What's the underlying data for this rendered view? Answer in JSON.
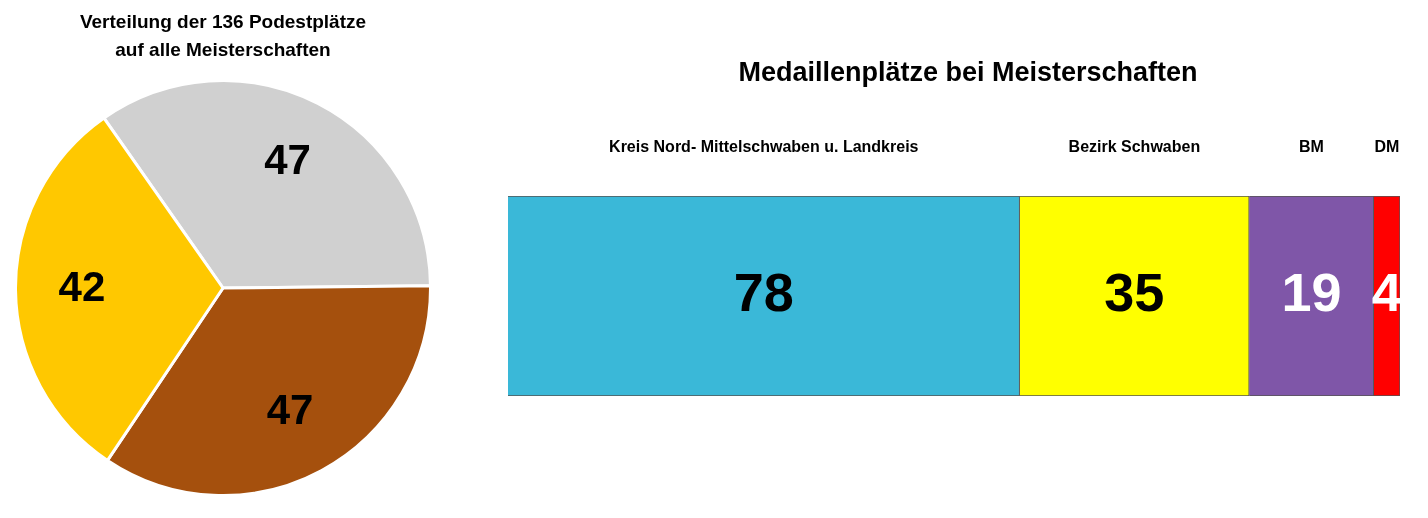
{
  "chart_data": [
    {
      "type": "pie",
      "title": "Verteilung der 136 Podestplätze auf alle Meisterschaften",
      "categories": [
        null,
        null,
        null
      ],
      "values": [
        47,
        47,
        42
      ],
      "colors": [
        "#d0d0d0",
        "#a5500d",
        "#ffc800"
      ],
      "data_labels": true,
      "legend": false
    },
    {
      "type": "bar",
      "title": "Medaillenplätze bei Meisterschaften",
      "orientation": "horizontal",
      "stacked": true,
      "categories": [
        null
      ],
      "data_labels": true,
      "legend": false,
      "tick_labels": false,
      "series": [
        {
          "name": "Kreis Nord- Mittelschwaben u. Landkreis",
          "color": "#3ab8d8",
          "values": [
            78
          ]
        },
        {
          "name": "Bezirk Schwaben",
          "color": "#ffff00",
          "values": [
            35
          ]
        },
        {
          "name": "BM",
          "color": "#7f56a8",
          "values": [
            19
          ]
        },
        {
          "name": "DM",
          "color": "#ff0000",
          "values": [
            4
          ]
        }
      ]
    }
  ]
}
